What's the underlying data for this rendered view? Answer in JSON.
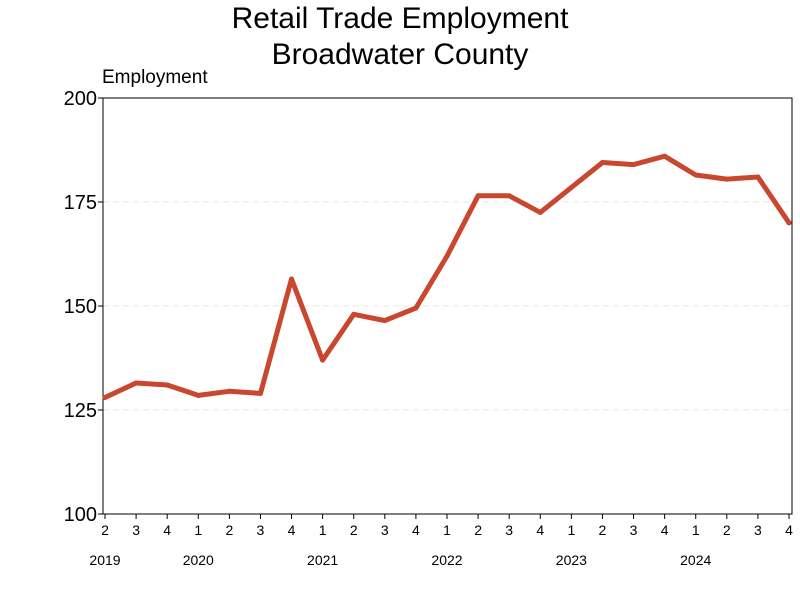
{
  "chart_data": {
    "type": "line",
    "title": "Retail Trade Employment",
    "subtitle": "Broadwater County",
    "ylabel": "Employment",
    "xlabel": "",
    "ylim": [
      100,
      200
    ],
    "yticks": [
      100,
      125,
      150,
      175,
      200
    ],
    "grid": "horizontal-dashed",
    "legend": "none",
    "colors": {
      "line": "#c8472e",
      "grid": "#e6e6e6",
      "axis": "#000000"
    },
    "x": [
      "2019 Q2",
      "2019 Q3",
      "2019 Q4",
      "2020 Q1",
      "2020 Q2",
      "2020 Q3",
      "2020 Q4",
      "2021 Q1",
      "2021 Q2",
      "2021 Q3",
      "2021 Q4",
      "2022 Q1",
      "2022 Q2",
      "2022 Q3",
      "2022 Q4",
      "2023 Q1",
      "2023 Q2",
      "2023 Q3",
      "2023 Q4",
      "2024 Q1",
      "2024 Q2",
      "2024 Q3",
      "2024 Q4"
    ],
    "quarter_labels": [
      "2",
      "3",
      "4",
      "1",
      "2",
      "3",
      "4",
      "1",
      "2",
      "3",
      "4",
      "1",
      "2",
      "3",
      "4",
      "1",
      "2",
      "3",
      "4",
      "1",
      "2",
      "3",
      "4"
    ],
    "year_labels": [
      {
        "label": "2019",
        "index": 0
      },
      {
        "label": "2020",
        "index": 3
      },
      {
        "label": "2021",
        "index": 7
      },
      {
        "label": "2022",
        "index": 11
      },
      {
        "label": "2023",
        "index": 15
      },
      {
        "label": "2024",
        "index": 19
      }
    ],
    "series": [
      {
        "values": [
          128,
          131.5,
          131,
          128.5,
          129.5,
          129,
          156.5,
          137,
          148,
          146.5,
          149.5,
          162,
          176.5,
          176.5,
          172.5,
          178.5,
          184.5,
          184,
          186,
          181.5,
          180.5,
          181,
          170
        ]
      }
    ]
  }
}
